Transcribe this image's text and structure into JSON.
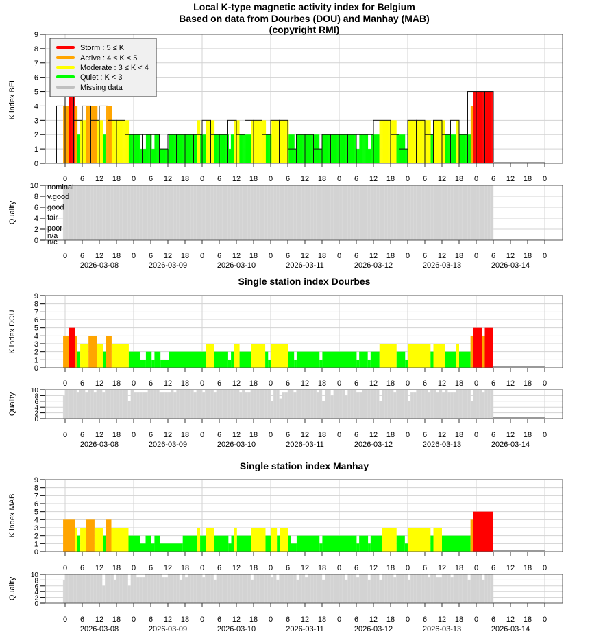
{
  "chart_data": {
    "type": "bar",
    "titles": {
      "line1": "Local K-type magnetic activity index for Belgium",
      "line2": "Based on data from Dourbes (DOU) and Manhay (MAB)",
      "line3": "(copyright RMI)"
    },
    "legend": {
      "placement": "top-left",
      "items": [
        {
          "label": "Storm : 5 ≤ K",
          "color": "#ff0000"
        },
        {
          "label": "Active : 4 ≤ K < 5",
          "color": "#ffa500"
        },
        {
          "label": "Moderate : 3 ≤ K < 4",
          "color": "#ffff00"
        },
        {
          "label": "Quiet : K < 3",
          "color": "#00ff00"
        },
        {
          "label": "Missing data",
          "color": "#c0c0c0"
        }
      ]
    },
    "colors": {
      "storm": "#ff0000",
      "active": "#ffa500",
      "moderate": "#ffff00",
      "quiet": "#00ff00",
      "missing": "#c0c0c0",
      "quality": "#d3d3d3",
      "grid": "#d3d3d3"
    },
    "x_axis": {
      "unit": "hours since 2026-03-08 00:00 UT",
      "range_hours": [
        0,
        168
      ],
      "hour_labels": [
        "0",
        "6",
        "12",
        "18"
      ],
      "final_label": "0",
      "dates": [
        "2026-03-08",
        "2026-03-09",
        "2026-03-10",
        "2026-03-11",
        "2026-03-12",
        "2026-03-13",
        "2026-03-14"
      ],
      "data_start_hour": -0.7,
      "data_end_hour": 150
    },
    "main": {
      "ylabel": "K index BEL",
      "ylim": [
        0,
        9
      ],
      "k3h_first_start_hour": -3,
      "k3h_values": [
        4,
        5,
        3,
        4,
        3,
        4,
        3,
        3,
        2,
        2,
        2,
        2,
        1,
        2,
        2,
        2,
        2,
        3,
        2,
        2,
        3,
        2,
        3,
        3,
        2,
        3,
        3,
        1,
        2,
        2,
        1,
        2,
        2,
        2,
        2,
        2,
        2,
        3,
        3,
        2,
        1,
        3,
        3,
        2,
        3,
        2,
        3,
        2,
        5,
        5,
        5
      ],
      "quality_ylabel": "Quality",
      "quality_ylim": [
        0,
        10
      ],
      "quality_value": 10,
      "quality_levels": [
        {
          "label": "nominal",
          "value": 9.9
        },
        {
          "label": "v.good",
          "value": 8.1
        },
        {
          "label": "good",
          "value": 6.2
        },
        {
          "label": "fair",
          "value": 4.3
        },
        {
          "label": "poor",
          "value": 2.4
        },
        {
          "label": "n/a",
          "value": 1.0
        },
        {
          "label": "n/c",
          "value": -0.1
        }
      ]
    },
    "dou": {
      "title": "Single station index Dourbes",
      "ylabel": "K index DOU",
      "quality_ylabel": "Quality",
      "ylim": [
        0,
        9
      ],
      "segments": [
        [
          -0.7,
          1.4,
          4
        ],
        [
          1.4,
          3.4,
          5
        ],
        [
          3.4,
          4.3,
          4
        ],
        [
          4.3,
          5.3,
          2
        ],
        [
          5.3,
          8.2,
          3
        ],
        [
          8.2,
          11.2,
          4
        ],
        [
          11.2,
          13.2,
          3
        ],
        [
          13.2,
          14.2,
          2
        ],
        [
          14.2,
          16.3,
          4
        ],
        [
          16.3,
          22.3,
          3
        ],
        [
          22.3,
          26.2,
          2
        ],
        [
          26.2,
          28.3,
          1
        ],
        [
          28.3,
          30.3,
          2
        ],
        [
          30.3,
          31.3,
          1
        ],
        [
          31.3,
          33.4,
          2
        ],
        [
          33.4,
          36.4,
          1
        ],
        [
          36.4,
          49.2,
          2
        ],
        [
          49.2,
          52.1,
          3
        ],
        [
          52.1,
          57.1,
          2
        ],
        [
          57.1,
          58.1,
          1
        ],
        [
          58.1,
          59.1,
          2
        ],
        [
          59.1,
          61.1,
          3
        ],
        [
          61.1,
          65.1,
          2
        ],
        [
          65.1,
          70.1,
          3
        ],
        [
          70.1,
          71.1,
          2
        ],
        [
          71.1,
          72.2,
          1
        ],
        [
          72.2,
          78.2,
          3
        ],
        [
          78.2,
          80.2,
          2
        ],
        [
          80.2,
          81.1,
          1
        ],
        [
          81.1,
          89.1,
          2
        ],
        [
          89.1,
          90.1,
          1
        ],
        [
          90.1,
          102.1,
          2
        ],
        [
          102.1,
          103,
          1
        ],
        [
          103,
          106,
          2
        ],
        [
          106,
          107,
          1
        ],
        [
          107,
          110.1,
          2
        ],
        [
          110.1,
          116.1,
          3
        ],
        [
          116.1,
          119.1,
          2
        ],
        [
          119.1,
          120,
          1
        ],
        [
          120,
          128,
          3
        ],
        [
          128,
          129,
          2
        ],
        [
          129,
          133,
          3
        ],
        [
          133,
          137,
          2
        ],
        [
          137,
          138,
          3
        ],
        [
          138,
          142,
          2
        ],
        [
          142,
          143,
          4
        ],
        [
          143,
          146,
          5
        ],
        [
          146,
          147,
          4
        ],
        [
          147,
          150,
          5
        ]
      ],
      "quality_dips": [
        [
          -1,
          8
        ],
        [
          4,
          9
        ],
        [
          7,
          9
        ],
        [
          10,
          9
        ],
        [
          13,
          9
        ],
        [
          22,
          6
        ],
        [
          24,
          9
        ],
        [
          25,
          9
        ],
        [
          26,
          9
        ],
        [
          27,
          9
        ],
        [
          28,
          9
        ],
        [
          33,
          9
        ],
        [
          34,
          9
        ],
        [
          35,
          9
        ],
        [
          36,
          9
        ],
        [
          38,
          9
        ],
        [
          45,
          9
        ],
        [
          48,
          9
        ],
        [
          52,
          9
        ],
        [
          61,
          9
        ],
        [
          63,
          9
        ],
        [
          64,
          9
        ],
        [
          72,
          6
        ],
        [
          75,
          7
        ],
        [
          76,
          9
        ],
        [
          77,
          9
        ],
        [
          80,
          9
        ],
        [
          88,
          9
        ],
        [
          90,
          6
        ],
        [
          93,
          8
        ],
        [
          98,
          8
        ],
        [
          102,
          9
        ],
        [
          103,
          9
        ],
        [
          110,
          6
        ],
        [
          115,
          9
        ],
        [
          120,
          6
        ],
        [
          121,
          9
        ],
        [
          122,
          9
        ],
        [
          127,
          9
        ],
        [
          130,
          9
        ],
        [
          132,
          9
        ],
        [
          134,
          9
        ],
        [
          135,
          9
        ],
        [
          136,
          9
        ],
        [
          142,
          6
        ],
        [
          146,
          9
        ]
      ]
    },
    "mab": {
      "title": "Single station index Manhay",
      "ylabel": "K index MAB",
      "quality_ylabel": "Quality",
      "ylim": [
        0,
        9
      ],
      "segments": [
        [
          -0.7,
          3.4,
          4
        ],
        [
          3.4,
          4.3,
          3
        ],
        [
          4.3,
          5.3,
          2
        ],
        [
          5.3,
          7.3,
          3
        ],
        [
          7.3,
          10.3,
          4
        ],
        [
          10.3,
          13.3,
          3
        ],
        [
          13.3,
          14.2,
          2
        ],
        [
          14.2,
          16.2,
          4
        ],
        [
          16.2,
          22.2,
          3
        ],
        [
          22.2,
          26.2,
          2
        ],
        [
          26.2,
          28.2,
          1
        ],
        [
          28.2,
          30.2,
          2
        ],
        [
          30.2,
          31.3,
          1
        ],
        [
          31.3,
          33.3,
          2
        ],
        [
          33.3,
          41.2,
          1
        ],
        [
          41.2,
          46.2,
          2
        ],
        [
          46.2,
          47.3,
          3
        ],
        [
          47.3,
          49.2,
          2
        ],
        [
          49.2,
          52.2,
          3
        ],
        [
          52.2,
          57.2,
          2
        ],
        [
          57.2,
          58.2,
          1
        ],
        [
          58.2,
          59.2,
          2
        ],
        [
          59.2,
          60.2,
          3
        ],
        [
          60.2,
          65.2,
          2
        ],
        [
          65.2,
          70.2,
          3
        ],
        [
          70.2,
          72.2,
          2
        ],
        [
          72.2,
          74.2,
          3
        ],
        [
          74.2,
          75.2,
          2
        ],
        [
          75.2,
          78.2,
          3
        ],
        [
          78.2,
          79.2,
          2
        ],
        [
          79.2,
          81.1,
          1
        ],
        [
          81.1,
          89.1,
          2
        ],
        [
          89.1,
          90.1,
          1
        ],
        [
          90.1,
          102.1,
          2
        ],
        [
          102.1,
          103,
          1
        ],
        [
          103,
          106.1,
          2
        ],
        [
          106.1,
          107,
          1
        ],
        [
          107,
          111,
          2
        ],
        [
          111,
          116.1,
          3
        ],
        [
          116.1,
          119,
          2
        ],
        [
          119,
          120,
          1
        ],
        [
          120,
          128,
          3
        ],
        [
          128,
          129,
          2
        ],
        [
          129,
          132,
          3
        ],
        [
          132,
          142,
          2
        ],
        [
          142,
          143,
          4
        ],
        [
          143,
          150,
          5
        ]
      ],
      "quality_dips": [
        [
          -1,
          8
        ],
        [
          13,
          6
        ],
        [
          17,
          8
        ],
        [
          22,
          6
        ],
        [
          25,
          9
        ],
        [
          26,
          9
        ],
        [
          27,
          9
        ],
        [
          34,
          9
        ],
        [
          35,
          9
        ],
        [
          40,
          8
        ],
        [
          42,
          9
        ],
        [
          48,
          9
        ],
        [
          52,
          8
        ],
        [
          65,
          8
        ],
        [
          72,
          9
        ],
        [
          74,
          8
        ],
        [
          81,
          8
        ],
        [
          84,
          9
        ],
        [
          90,
          8
        ],
        [
          98,
          8
        ],
        [
          102,
          9
        ],
        [
          106,
          8
        ],
        [
          110,
          8
        ],
        [
          115,
          9
        ],
        [
          120,
          8
        ],
        [
          127,
          9
        ],
        [
          130,
          9
        ],
        [
          131,
          9
        ],
        [
          135,
          9
        ],
        [
          141,
          8
        ],
        [
          146,
          8
        ]
      ]
    }
  }
}
